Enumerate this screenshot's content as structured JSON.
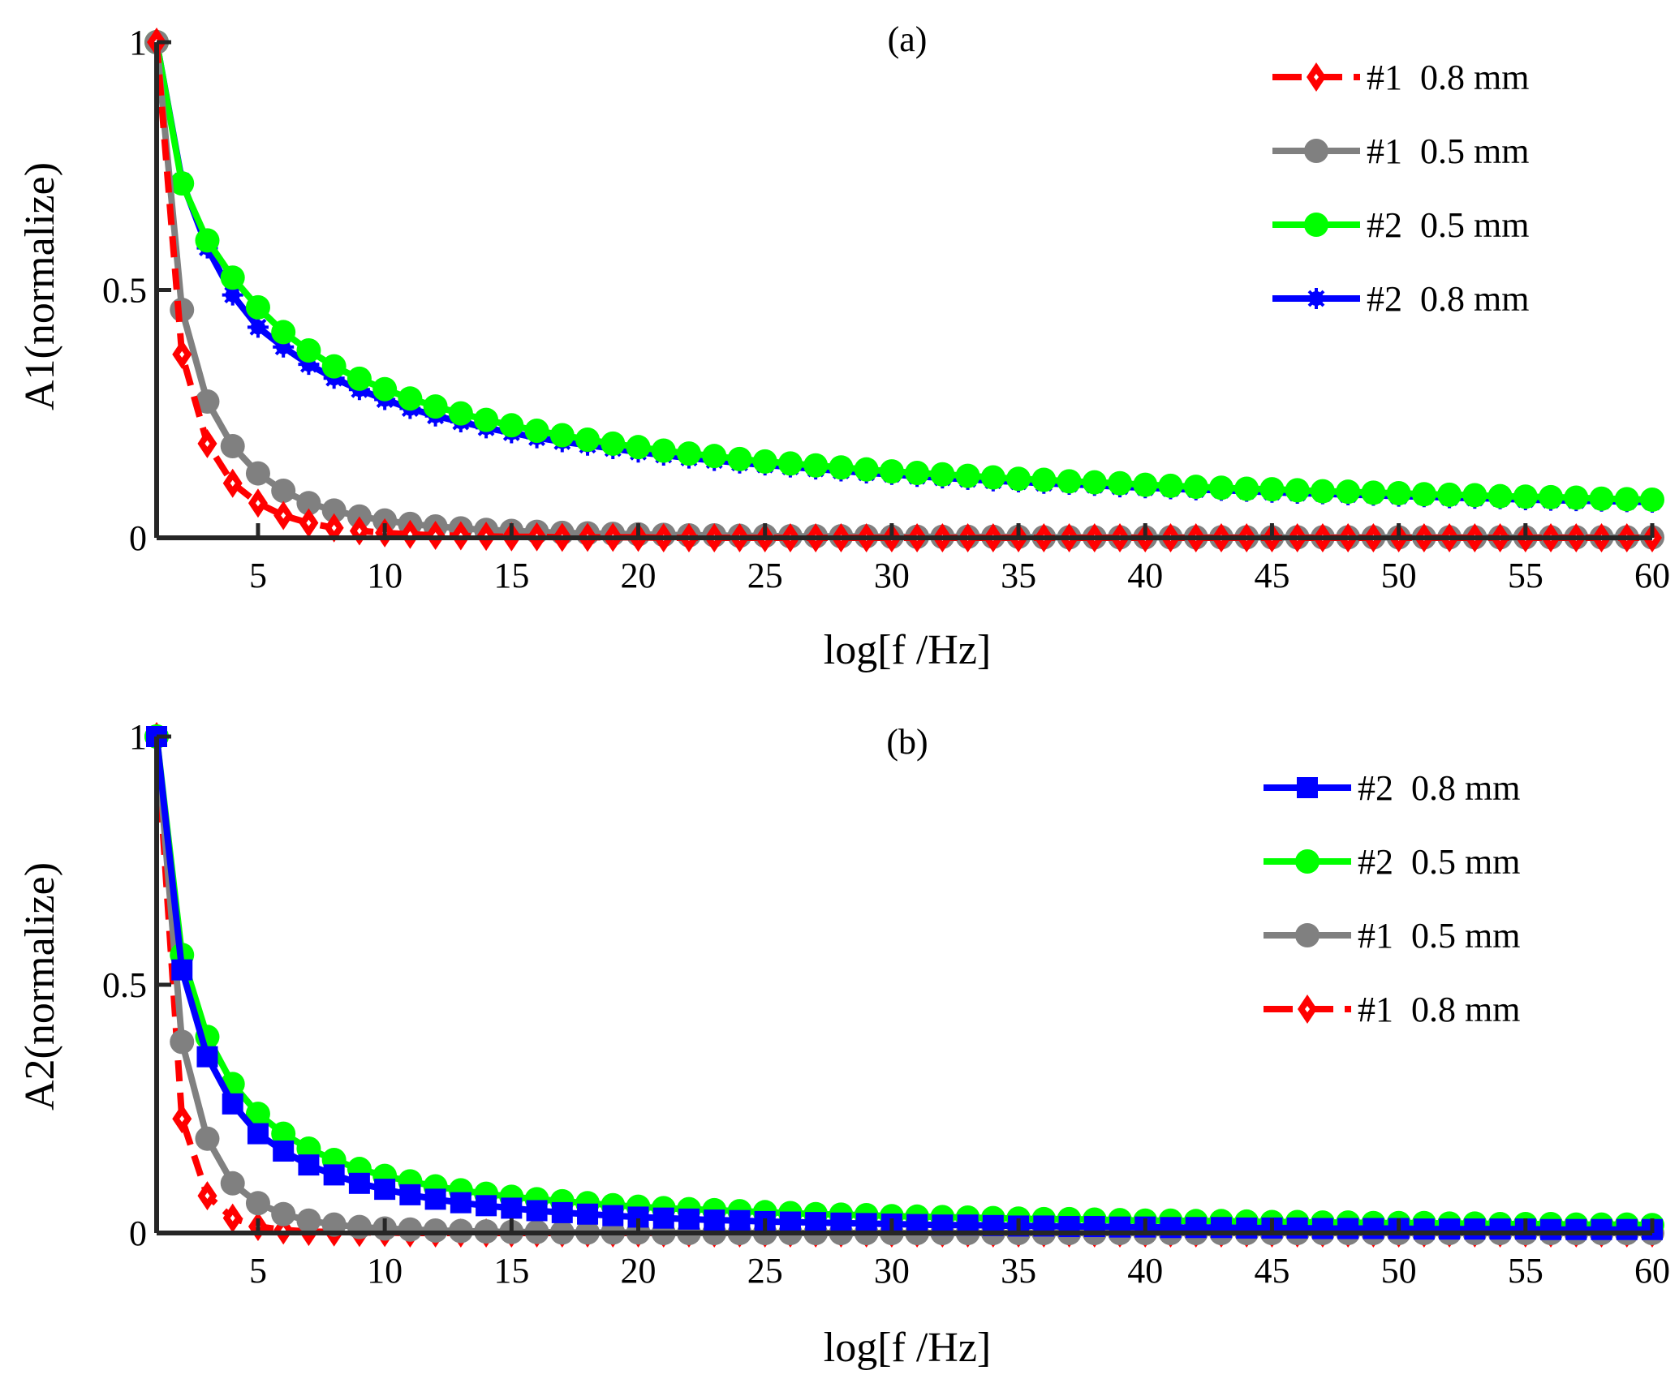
{
  "chart_data": [
    {
      "type": "line",
      "title": "(a)",
      "xlabel": "log[f /Hz]",
      "ylabel": "A1(normalize)",
      "xlim": [
        1,
        60
      ],
      "ylim": [
        0,
        1
      ],
      "xticks": [
        "5",
        "10",
        "15",
        "20",
        "25",
        "30",
        "35",
        "40",
        "45",
        "50",
        "55",
        "60"
      ],
      "yticks": [
        "0",
        "0.5",
        "1"
      ],
      "x": [
        1,
        2,
        3,
        4,
        5,
        6,
        7,
        8,
        9,
        10,
        11,
        12,
        13,
        14,
        15,
        16,
        17,
        18,
        19,
        20,
        21,
        22,
        23,
        24,
        25,
        26,
        27,
        28,
        29,
        30,
        31,
        32,
        33,
        34,
        35,
        36,
        37,
        38,
        39,
        40,
        41,
        42,
        43,
        44,
        45,
        46,
        47,
        48,
        49,
        50,
        51,
        52,
        53,
        54,
        55,
        56,
        57,
        58,
        59,
        60
      ],
      "series": [
        {
          "name": "#1  0.8 mm",
          "legend": "#1  0.8 mm",
          "color": "#ff0000",
          "marker": "diamond",
          "dashed": true,
          "values": [
            1.0,
            0.37,
            0.19,
            0.11,
            0.07,
            0.045,
            0.03,
            0.02,
            0.014,
            0.01,
            0.007,
            0.005,
            0.004,
            0.003,
            0.002,
            0.002,
            0.001,
            0.001,
            0.001,
            0.001,
            0.0,
            0.0,
            0.0,
            0.0,
            0.0,
            0.0,
            0.0,
            0.0,
            0.0,
            0.0,
            0.0,
            0.0,
            0.0,
            0.0,
            0.0,
            0.0,
            0.0,
            0.0,
            0.0,
            0.0,
            0.0,
            0.0,
            0.0,
            0.0,
            0.0,
            0.0,
            0.0,
            0.0,
            0.0,
            0.0,
            0.0,
            0.0,
            0.0,
            0.0,
            0.0,
            0.0,
            0.0,
            0.0,
            0.0,
            0.0
          ]
        },
        {
          "name": "#1  0.5 mm",
          "legend": "#1  0.5 mm",
          "color": "#808080",
          "marker": "circle",
          "dashed": false,
          "values": [
            1.0,
            0.46,
            0.275,
            0.185,
            0.13,
            0.095,
            0.07,
            0.055,
            0.043,
            0.035,
            0.028,
            0.023,
            0.019,
            0.016,
            0.014,
            0.012,
            0.01,
            0.009,
            0.008,
            0.007,
            0.006,
            0.005,
            0.005,
            0.004,
            0.004,
            0.003,
            0.003,
            0.003,
            0.003,
            0.002,
            0.002,
            0.002,
            0.002,
            0.002,
            0.002,
            0.001,
            0.001,
            0.001,
            0.001,
            0.001,
            0.001,
            0.001,
            0.001,
            0.001,
            0.001,
            0.001,
            0.001,
            0.001,
            0.001,
            0.001,
            0.001,
            0.001,
            0.001,
            0.001,
            0.001,
            0.001,
            0.001,
            0.001,
            0.001,
            0.001
          ]
        },
        {
          "name": "#2  0.5 mm",
          "legend": "#2  0.5 mm",
          "color": "#00ff00",
          "marker": "circle",
          "dashed": false,
          "values": [
            1.0,
            0.715,
            0.6,
            0.525,
            0.465,
            0.415,
            0.378,
            0.346,
            0.321,
            0.3,
            0.281,
            0.265,
            0.251,
            0.238,
            0.227,
            0.216,
            0.207,
            0.198,
            0.19,
            0.183,
            0.176,
            0.17,
            0.165,
            0.159,
            0.154,
            0.15,
            0.146,
            0.142,
            0.138,
            0.134,
            0.131,
            0.128,
            0.125,
            0.122,
            0.119,
            0.117,
            0.114,
            0.112,
            0.11,
            0.107,
            0.105,
            0.103,
            0.101,
            0.099,
            0.098,
            0.096,
            0.094,
            0.093,
            0.091,
            0.09,
            0.088,
            0.087,
            0.086,
            0.084,
            0.083,
            0.082,
            0.081,
            0.079,
            0.078,
            0.077
          ]
        },
        {
          "name": "#2  0.8 mm",
          "legend": "#2  0.8 mm",
          "color": "#0000ff",
          "marker": "star",
          "dashed": false,
          "values": [
            1.0,
            0.72,
            0.585,
            0.49,
            0.425,
            0.385,
            0.35,
            0.322,
            0.299,
            0.279,
            0.261,
            0.246,
            0.234,
            0.222,
            0.212,
            0.202,
            0.194,
            0.187,
            0.18,
            0.173,
            0.167,
            0.161,
            0.156,
            0.151,
            0.147,
            0.143,
            0.139,
            0.135,
            0.131,
            0.128,
            0.124,
            0.121,
            0.118,
            0.115,
            0.113,
            0.11,
            0.108,
            0.106,
            0.103,
            0.101,
            0.099,
            0.097,
            0.096,
            0.094,
            0.092,
            0.09,
            0.089,
            0.087,
            0.086,
            0.084,
            0.083,
            0.081,
            0.08,
            0.079,
            0.077,
            0.076,
            0.075,
            0.074,
            0.073,
            0.072
          ]
        }
      ],
      "legend_order": [
        "#1  0.8 mm",
        "#1  0.5 mm",
        "#2  0.5 mm",
        "#2  0.8 mm"
      ],
      "legend_position": "top-right",
      "grid": false
    },
    {
      "type": "line",
      "title": "(b)",
      "xlabel": "log[f /Hz]",
      "ylabel": "A2(normalize)",
      "xlim": [
        1,
        60
      ],
      "ylim": [
        0,
        1
      ],
      "xticks": [
        "5",
        "10",
        "15",
        "20",
        "25",
        "30",
        "35",
        "40",
        "45",
        "50",
        "55",
        "60"
      ],
      "yticks": [
        "0",
        "0.5",
        "1"
      ],
      "x": [
        1,
        2,
        3,
        4,
        5,
        6,
        7,
        8,
        9,
        10,
        11,
        12,
        13,
        14,
        15,
        16,
        17,
        18,
        19,
        20,
        21,
        22,
        23,
        24,
        25,
        26,
        27,
        28,
        29,
        30,
        31,
        32,
        33,
        34,
        35,
        36,
        37,
        38,
        39,
        40,
        41,
        42,
        43,
        44,
        45,
        46,
        47,
        48,
        49,
        50,
        51,
        52,
        53,
        54,
        55,
        56,
        57,
        58,
        59,
        60
      ],
      "series": [
        {
          "name": "#1  0.8 mm",
          "legend": "#1  0.8 mm",
          "color": "#ff0000",
          "marker": "diamond",
          "dashed": true,
          "values": [
            1.0,
            0.23,
            0.075,
            0.03,
            0.013,
            0.006,
            0.003,
            0.002,
            0.001,
            0.001,
            0.0,
            0.0,
            0.0,
            0.0,
            0.0,
            0.0,
            0.0,
            0.0,
            0.0,
            0.0,
            0.0,
            0.0,
            0.0,
            0.0,
            0.0,
            0.0,
            0.0,
            0.0,
            0.0,
            0.0,
            0.0,
            0.0,
            0.0,
            0.0,
            0.0,
            0.0,
            0.0,
            0.0,
            0.0,
            0.0,
            0.0,
            0.0,
            0.0,
            0.0,
            0.0,
            0.0,
            0.0,
            0.0,
            0.0,
            0.0,
            0.0,
            0.0,
            0.0,
            0.0,
            0.0,
            0.0,
            0.0,
            0.0,
            0.0,
            0.0
          ]
        },
        {
          "name": "#1  0.5 mm",
          "legend": "#1  0.5 mm",
          "color": "#808080",
          "marker": "circle",
          "dashed": false,
          "values": [
            1.0,
            0.385,
            0.19,
            0.1,
            0.06,
            0.038,
            0.025,
            0.017,
            0.012,
            0.009,
            0.007,
            0.005,
            0.004,
            0.003,
            0.002,
            0.002,
            0.001,
            0.001,
            0.001,
            0.001,
            0.0,
            0.0,
            0.0,
            0.0,
            0.0,
            0.0,
            0.0,
            0.0,
            0.0,
            0.0,
            0.0,
            0.0,
            0.0,
            0.0,
            0.0,
            0.0,
            0.0,
            0.0,
            0.0,
            0.0,
            0.0,
            0.0,
            0.0,
            0.0,
            0.0,
            0.0,
            0.0,
            0.0,
            0.0,
            0.0,
            0.0,
            0.0,
            0.0,
            0.0,
            0.0,
            0.0,
            0.0,
            0.0,
            0.0,
            0.0
          ]
        },
        {
          "name": "#2  0.5 mm",
          "legend": "#2  0.5 mm",
          "color": "#00ff00",
          "marker": "circle",
          "dashed": false,
          "values": [
            1.0,
            0.56,
            0.395,
            0.3,
            0.24,
            0.2,
            0.17,
            0.147,
            0.129,
            0.115,
            0.104,
            0.094,
            0.086,
            0.079,
            0.073,
            0.068,
            0.064,
            0.06,
            0.056,
            0.053,
            0.05,
            0.048,
            0.046,
            0.044,
            0.042,
            0.04,
            0.038,
            0.037,
            0.036,
            0.034,
            0.033,
            0.032,
            0.031,
            0.03,
            0.029,
            0.028,
            0.028,
            0.027,
            0.026,
            0.025,
            0.025,
            0.024,
            0.024,
            0.023,
            0.022,
            0.022,
            0.021,
            0.021,
            0.02,
            0.02,
            0.02,
            0.019,
            0.019,
            0.018,
            0.018,
            0.018,
            0.017,
            0.017,
            0.017,
            0.016
          ]
        },
        {
          "name": "#2  0.8 mm",
          "legend": "#2  0.8 mm",
          "color": "#0000ff",
          "marker": "square",
          "dashed": false,
          "values": [
            1.0,
            0.53,
            0.355,
            0.26,
            0.2,
            0.165,
            0.137,
            0.117,
            0.1,
            0.088,
            0.077,
            0.068,
            0.061,
            0.055,
            0.05,
            0.045,
            0.041,
            0.038,
            0.035,
            0.032,
            0.03,
            0.028,
            0.026,
            0.025,
            0.023,
            0.022,
            0.021,
            0.02,
            0.019,
            0.018,
            0.017,
            0.016,
            0.016,
            0.015,
            0.014,
            0.014,
            0.013,
            0.013,
            0.012,
            0.012,
            0.011,
            0.011,
            0.011,
            0.01,
            0.01,
            0.01,
            0.009,
            0.009,
            0.009,
            0.009,
            0.008,
            0.008,
            0.008,
            0.008,
            0.008,
            0.007,
            0.007,
            0.007,
            0.007,
            0.007
          ]
        }
      ],
      "legend_order": [
        "#2  0.8 mm",
        "#2  0.5 mm",
        "#1  0.5 mm",
        "#1  0.8 mm"
      ],
      "legend_position": "top-right",
      "grid": false
    }
  ]
}
